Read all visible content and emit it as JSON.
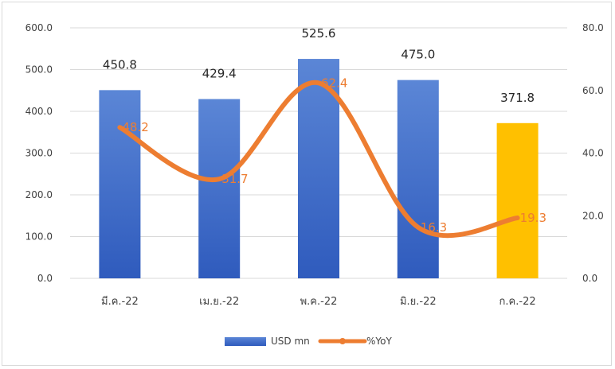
{
  "chart_data": {
    "type": "bar",
    "categories": [
      "มี.ค.-22",
      "เม.ย.-22",
      "พ.ค.-22",
      "มิ.ย.-22",
      "ก.ค.-22"
    ],
    "series": [
      {
        "name": "USD mn",
        "type": "bar",
        "axis": "left",
        "values": [
          450.8,
          429.4,
          525.6,
          475.0,
          371.8
        ],
        "labels": [
          "450.8",
          "429.4",
          "525.6",
          "475.0",
          "371.8"
        ],
        "colors": [
          "#3f6fcc",
          "#3f6fcc",
          "#3f6fcc",
          "#3f6fcc",
          "#ffc000"
        ]
      },
      {
        "name": "%YoY",
        "type": "line",
        "axis": "right",
        "values": [
          48.2,
          31.7,
          62.4,
          16.3,
          19.3
        ],
        "labels": [
          "48.2",
          "31.7",
          "62.4",
          "16.3",
          "19.3"
        ],
        "color": "#ed7d31"
      }
    ],
    "y_left": {
      "min": 0,
      "max": 600,
      "ticks": [
        "0.0",
        "100.0",
        "200.0",
        "300.0",
        "400.0",
        "500.0",
        "600.0"
      ]
    },
    "y_right": {
      "min": 0,
      "max": 80,
      "ticks": [
        "0.0",
        "20.0",
        "40.0",
        "60.0",
        "80.0"
      ]
    },
    "grid": true,
    "legend_position": "bottom"
  }
}
